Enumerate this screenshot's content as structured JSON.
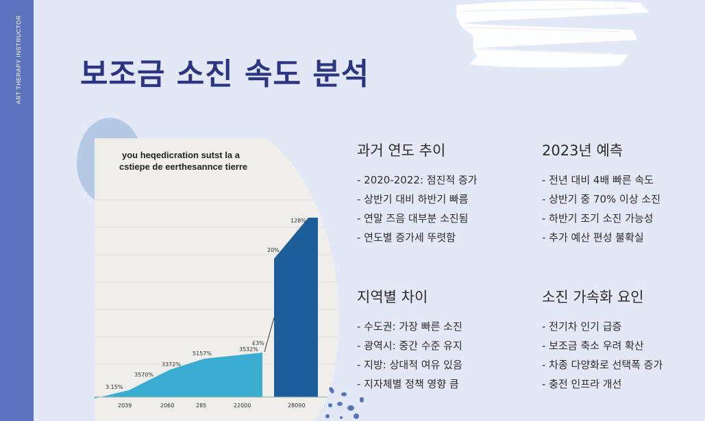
{
  "sidebar": {
    "label": "ART THERAPY INSTRUCTOR"
  },
  "title": "보조금 소진 속도 분석",
  "chart": {
    "caption_line1": "you heqedicration sutst la a",
    "caption_line2": "cstiepe de eerthesannce tierre",
    "x_labels": [
      "2039",
      "2060",
      "285",
      "22000",
      "28090"
    ],
    "point_labels": [
      "3.15%",
      "3570%",
      "3372%",
      "5157%",
      "3532%",
      "£3%",
      "20%",
      "128%"
    ]
  },
  "sections": [
    {
      "heading": "과거 연도 추이",
      "items": [
        "- 2020-2022: 점진적 증가",
        "- 상반기 대비 하반기 빠름",
        "- 연말 즈음 대부분 소진됨",
        "- 연도별 증가세 뚜렷함"
      ]
    },
    {
      "heading": "2023년 예측",
      "items": [
        "- 전년 대비 4배 빠른 속도",
        "- 상반기 중 70% 이상 소진",
        "- 하반기 조기 소진 가능성",
        "- 추가 예산 편성 불확실"
      ]
    },
    {
      "heading": "지역별 차이",
      "items": [
        "- 수도권: 가장 빠른 소진",
        "- 광역시: 중간 수준 유지",
        "- 지방: 상대적 여유 있음",
        "- 지자체별 정책 영향 큼"
      ]
    },
    {
      "heading": "소진 가속화 요인",
      "items": [
        "- 전기차 인기 급증",
        "- 보조금 축소 우려 확산",
        "- 차종 다양화로 선택폭 증가",
        "- 충전 인프라 개선"
      ]
    }
  ]
}
